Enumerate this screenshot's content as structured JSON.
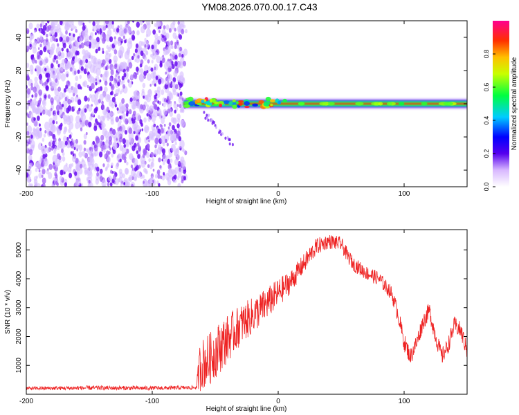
{
  "figure_title": "YM08.2026.070.00.17.C43",
  "colorbar": {
    "label": "Normalized spectral amplitude",
    "range": [
      0,
      1
    ],
    "ticks": [
      0.0,
      0.2,
      0.4,
      0.6,
      0.8
    ],
    "tick_labels": [
      "0.0",
      "0.2",
      "0.4",
      "0.6",
      "0.8"
    ]
  },
  "chart_data": [
    {
      "type": "heatmap",
      "title": "YM08.2026.070.00.17.C43",
      "xlabel": "Height of straight line (km)",
      "ylabel": "Frequency (Hz)",
      "xlim": [
        -200,
        150
      ],
      "ylim": [
        -50,
        50
      ],
      "xticks": [
        -200,
        -100,
        0,
        100
      ],
      "xtick_labels": [
        "-200",
        "-100",
        "0",
        "100"
      ],
      "yticks": [
        -40,
        -20,
        0,
        20,
        40
      ],
      "ytick_labels": [
        "-40",
        "-20",
        "0",
        "20",
        "40"
      ],
      "regions": [
        {
          "name": "noise-speckle",
          "x_range": [
            -200,
            -73
          ],
          "y_range": [
            -50,
            50
          ],
          "amplitude_range": [
            0.0,
            0.15
          ]
        },
        {
          "name": "signal-band",
          "x_range": [
            -75,
            150
          ],
          "y_range": [
            -2,
            2
          ],
          "amplitude_range": [
            0.3,
            1.0
          ]
        },
        {
          "name": "faint-trail",
          "x_range": [
            -60,
            -35
          ],
          "y_range": [
            -25,
            -5
          ],
          "amplitude_range": [
            0.0,
            0.1
          ]
        }
      ]
    },
    {
      "type": "line",
      "xlabel": "Height of straight line (km)",
      "ylabel": "SNR (10 * v/v)",
      "xlim": [
        -200,
        150
      ],
      "ylim": [
        0,
        5700
      ],
      "xticks": [
        -200,
        -100,
        0,
        100
      ],
      "xtick_labels": [
        "-200",
        "-100",
        "0",
        "100"
      ],
      "yticks": [
        1000,
        2000,
        3000,
        4000,
        5000
      ],
      "ytick_labels": [
        "1000",
        "2000",
        "3000",
        "4000",
        "5000"
      ],
      "series": [
        {
          "name": "SNR",
          "color": "#ee2222",
          "x": [
            -200,
            -150,
            -100,
            -65,
            -62,
            -55,
            -45,
            -30,
            -15,
            0,
            10,
            20,
            30,
            40,
            50,
            55,
            60,
            70,
            80,
            90,
            95,
            100,
            105,
            110,
            115,
            120,
            125,
            130,
            135,
            140,
            145,
            150
          ],
          "y": [
            200,
            220,
            210,
            230,
            1000,
            1200,
            1700,
            2400,
            2900,
            3500,
            3900,
            4500,
            5100,
            5300,
            5200,
            4800,
            4500,
            4200,
            4000,
            3500,
            2800,
            1800,
            1300,
            1800,
            2500,
            2900,
            2000,
            1300,
            1700,
            2400,
            2200,
            1500
          ],
          "noise": [
            60,
            80,
            70,
            70,
            900,
            900,
            900,
            700,
            600,
            500,
            400,
            350,
            300,
            250,
            250,
            250,
            250,
            250,
            250,
            250,
            300,
            300,
            300,
            300,
            300,
            300,
            300,
            300,
            300,
            300,
            300,
            300
          ]
        }
      ]
    }
  ]
}
